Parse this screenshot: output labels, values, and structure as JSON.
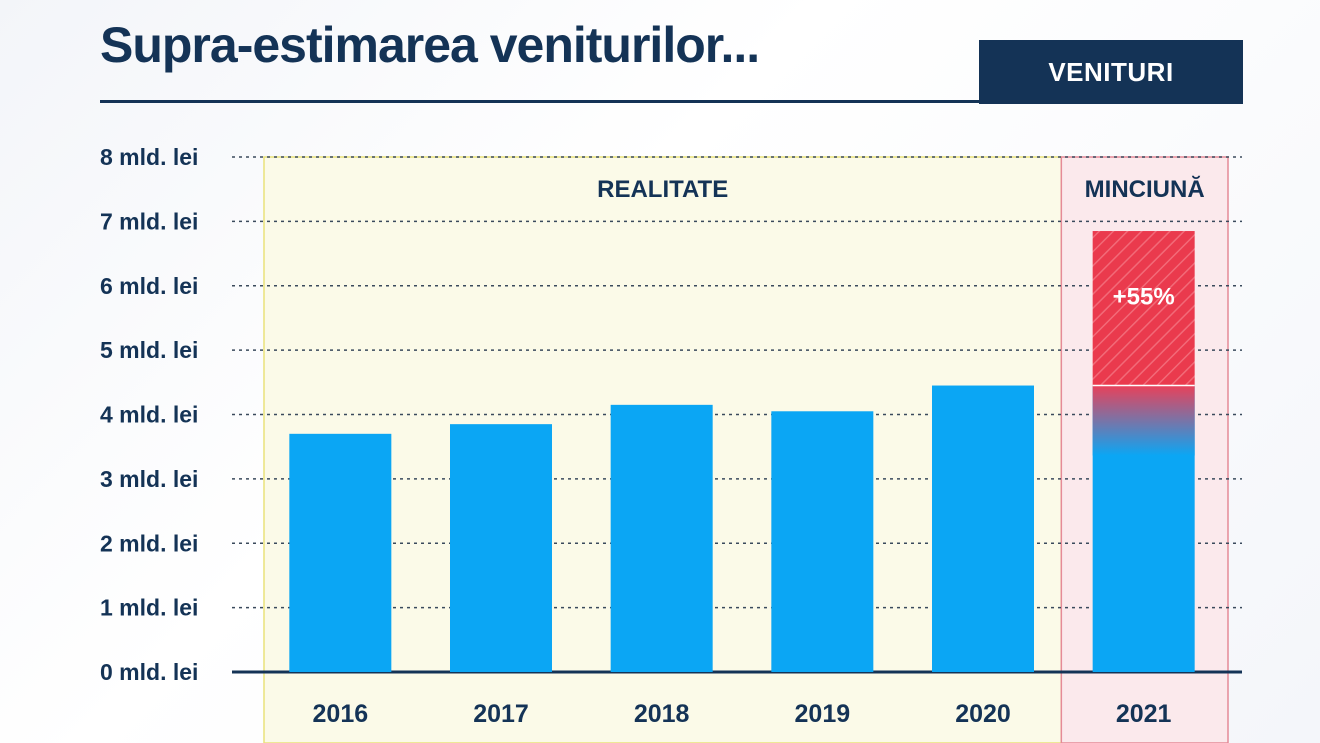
{
  "header": {
    "title": "Supra-estimarea veniturilor...",
    "badge": "VENITURI"
  },
  "colors": {
    "navy": "#143356",
    "bar": "#0ba6f4",
    "highlight": "#ea3a4d",
    "realitate_zone": "#fbfae8",
    "minciuna_zone": "#fbe9ec"
  },
  "chart_data": {
    "type": "bar",
    "categories": [
      "2016",
      "2017",
      "2018",
      "2019",
      "2020",
      "2021"
    ],
    "values": [
      3.7,
      3.85,
      4.15,
      4.05,
      4.45,
      6.85
    ],
    "highlight": {
      "category": "2021",
      "base_value": 4.45,
      "label": "+55%"
    },
    "ylim": [
      0,
      8
    ],
    "yticks": [
      0,
      1,
      2,
      3,
      4,
      5,
      6,
      7,
      8
    ],
    "ytick_labels": [
      "0 mld. lei",
      "1 mld. lei",
      "2 mld. lei",
      "3 mld. lei",
      "4 mld. lei",
      "5 mld. lei",
      "6 mld. lei",
      "7 mld. lei",
      "8 mld. lei"
    ],
    "grid": "dotted horizontal",
    "zones": [
      {
        "label": "REALITATE",
        "categories": [
          "2016",
          "2017",
          "2018",
          "2019",
          "2020"
        ]
      },
      {
        "label": "MINCIUNĂ",
        "categories": [
          "2021"
        ]
      }
    ],
    "xlabel": "",
    "ylabel": ""
  }
}
